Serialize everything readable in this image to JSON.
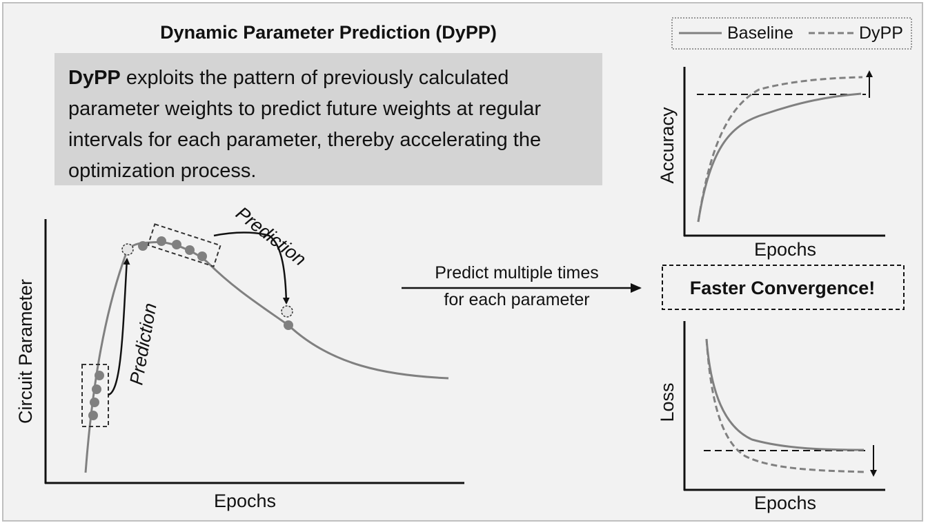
{
  "title": "Dynamic Parameter Prediction (DyPP)",
  "description": {
    "bold_term": "DyPP",
    "text": " exploits the pattern of previously calculated parameter weights to predict future weights at regular intervals for each parameter, thereby accelerating the optimization process."
  },
  "left_plot": {
    "ylabel": "Circuit Parameter",
    "xlabel": "Epochs",
    "prediction_label_1": "Prediction",
    "prediction_label_2": "Prediction"
  },
  "arrow_text": {
    "line1": "Predict multiple times",
    "line2": "for each parameter"
  },
  "legend": {
    "baseline": "Baseline",
    "dypp": "DyPP"
  },
  "accuracy_plot": {
    "ylabel": "Accuracy",
    "xlabel": "Epochs"
  },
  "convergence_label": "Faster Convergence!",
  "loss_plot": {
    "ylabel": "Loss",
    "xlabel": "Epochs"
  },
  "colors": {
    "curve": "#808080",
    "background": "#f2f2f2",
    "description_box": "#d4d4d4",
    "text": "#111111"
  }
}
